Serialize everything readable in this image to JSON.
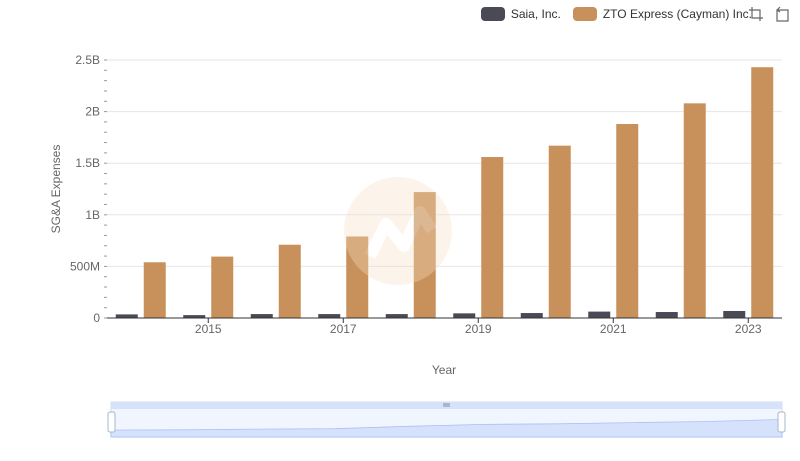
{
  "legend": {
    "series_a": "Saia, Inc.",
    "series_b": "ZTO Express (Cayman) Inc."
  },
  "toolbox": {
    "zoom_icon": "zoom-icon",
    "restore_icon": "restore-icon"
  },
  "colors": {
    "series_a": "#4a4a56",
    "series_b": "#c8915b",
    "grid": "#e6e6e6",
    "zoom_fill": "#d6e2fb"
  },
  "chart_data": {
    "type": "bar",
    "title": "",
    "xlabel": "Year",
    "ylabel": "SG&A Expenses",
    "categories": [
      "2014",
      "2015",
      "2016",
      "2017",
      "2018",
      "2019",
      "2020",
      "2021",
      "2022",
      "2023"
    ],
    "x_tick_labels": [
      "2015",
      "2017",
      "2019",
      "2021",
      "2023"
    ],
    "y_tick_labels": [
      "0",
      "500M",
      "1B",
      "1.5B",
      "2B",
      "2.5B"
    ],
    "ylim": [
      0,
      2500000000
    ],
    "series": [
      {
        "name": "Saia, Inc.",
        "values": [
          35000000,
          28000000,
          38000000,
          38000000,
          38000000,
          45000000,
          48000000,
          62000000,
          58000000,
          68000000
        ]
      },
      {
        "name": "ZTO Express (Cayman) Inc.",
        "values": [
          540000000,
          595000000,
          710000000,
          790000000,
          1220000000,
          1560000000,
          1670000000,
          1880000000,
          2080000000,
          2430000000
        ]
      }
    ]
  }
}
